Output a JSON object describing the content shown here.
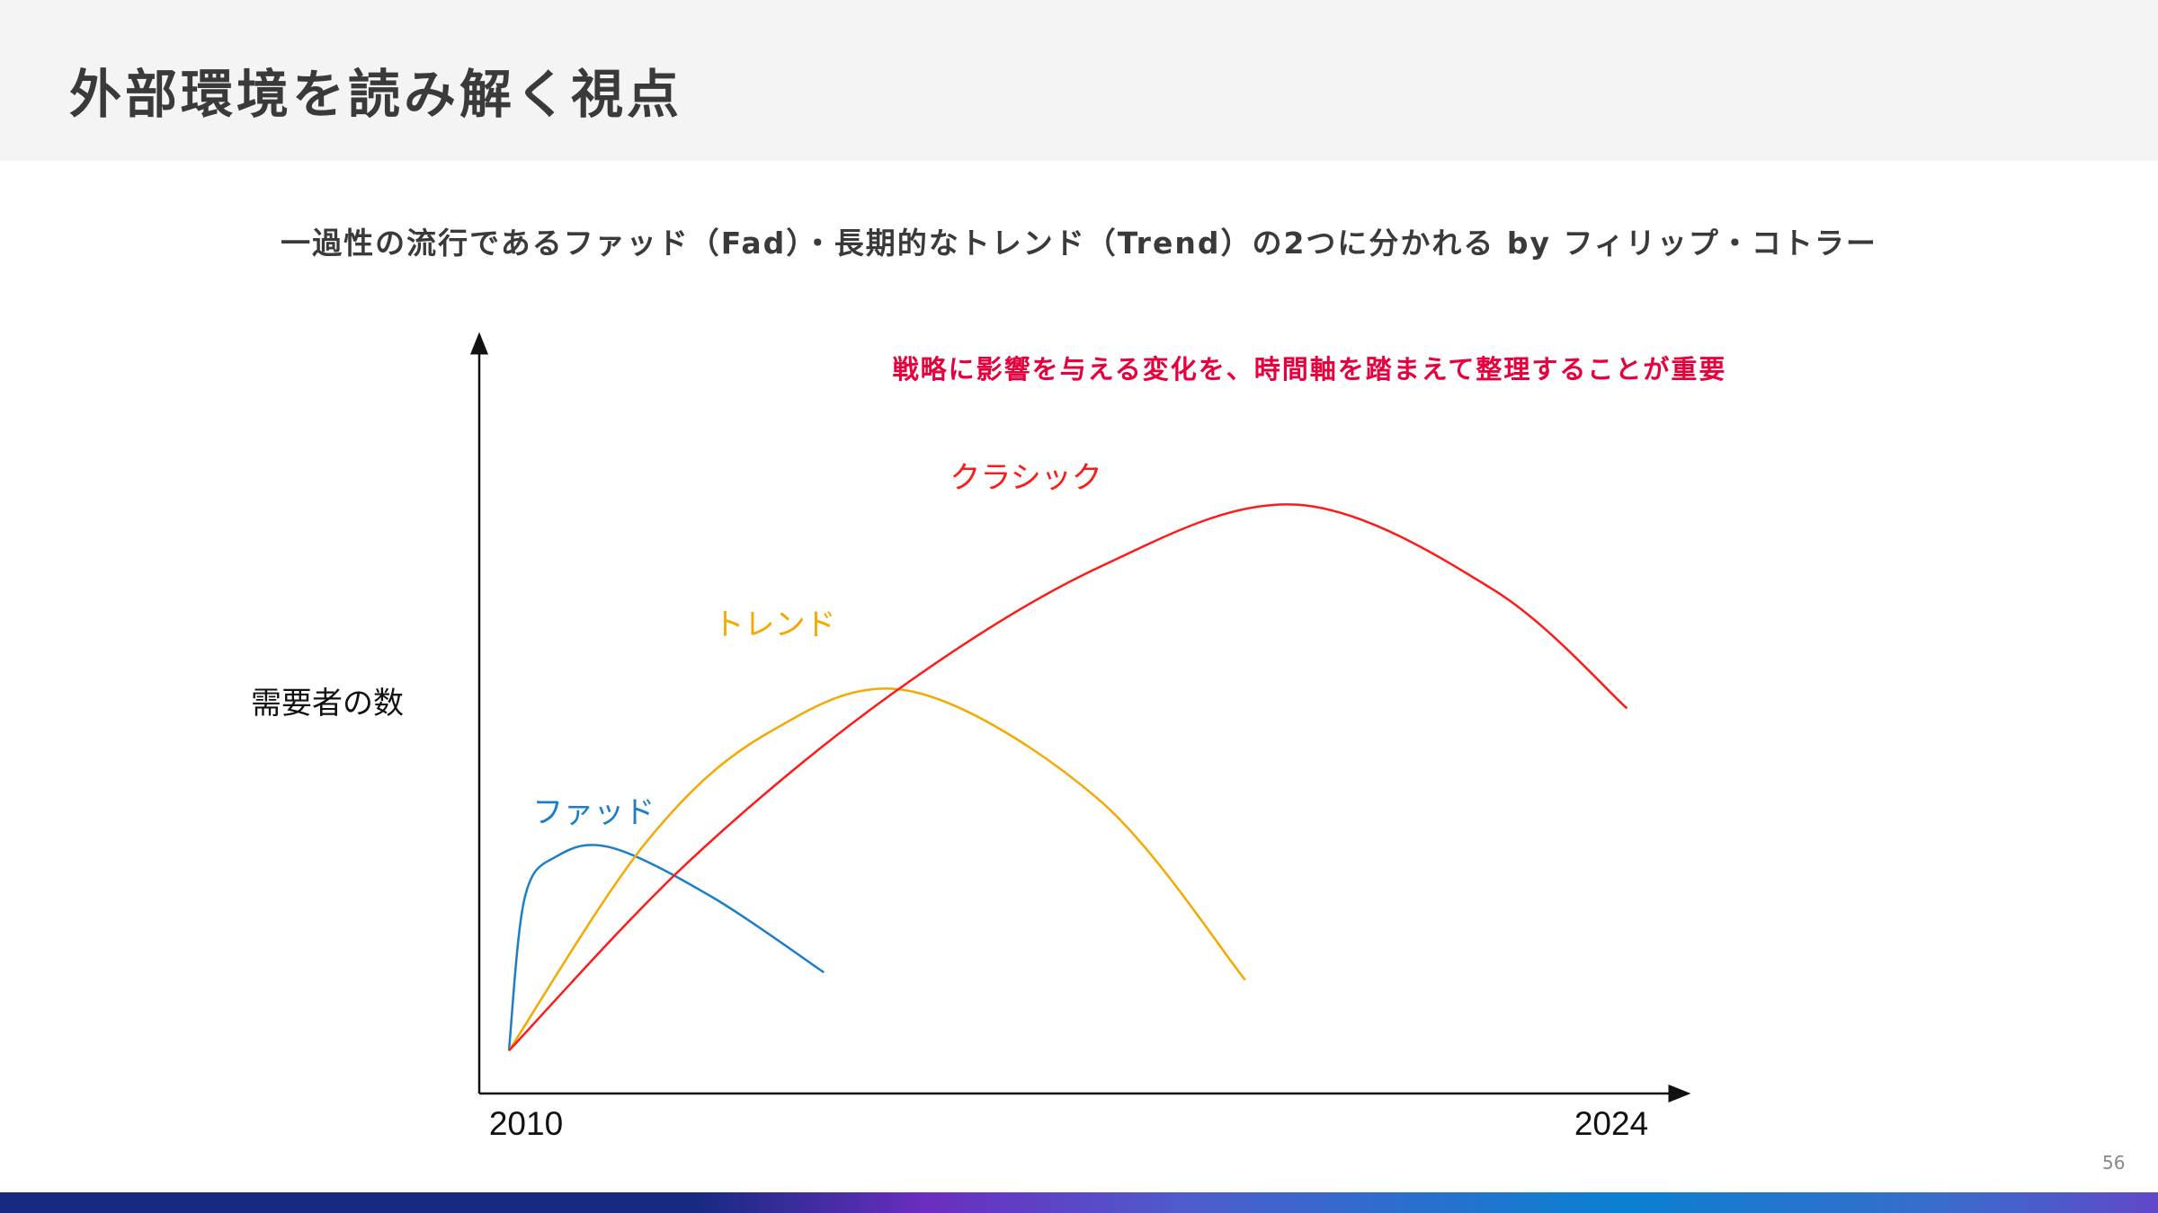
{
  "header": {
    "title": "外部環境を読み解く視点"
  },
  "subtitle": "一過性の流行であるファッド（Fad）・長期的なトレンド（Trend）の2つに分かれる by フィリップ・コトラー",
  "page_number": "56",
  "chart_data": {
    "type": "line",
    "title": "",
    "annotation": "戦略に影響を与える変化を、時間軸を踏まえて整理することが重要",
    "xlabel": "",
    "ylabel": "需要者の数",
    "x_tick_labels": [
      "2010",
      "2024"
    ],
    "x_ticks": [
      2010,
      2024
    ],
    "xlim": [
      2010,
      2025.2
    ],
    "ylim": [
      0,
      100
    ],
    "grid": false,
    "series": [
      {
        "name": "ファッド",
        "color": "#1a7fc8",
        "points": [
          [
            2010,
            5.7
          ],
          [
            2010.2,
            26
          ],
          [
            2010.6,
            31.5
          ],
          [
            2011.3,
            32.7
          ],
          [
            2012.6,
            26
          ],
          [
            2014.0,
            16.1
          ]
        ]
      },
      {
        "name": "トレンド",
        "color": "#f5a800",
        "points": [
          [
            2010,
            5.7
          ],
          [
            2011.75,
            33.5
          ],
          [
            2013.3,
            48
          ],
          [
            2015.1,
            53.5
          ],
          [
            2017.5,
            39
          ],
          [
            2019.35,
            15.1
          ]
        ]
      },
      {
        "name": "クラシック",
        "color": "#ff1a1a",
        "points": [
          [
            2010,
            5.7
          ],
          [
            2012.3,
            31
          ],
          [
            2014.9,
            53.4
          ],
          [
            2017.5,
            70
          ],
          [
            2020.0,
            78.3
          ],
          [
            2022.5,
            67
          ],
          [
            2024.2,
            51.2
          ]
        ]
      }
    ],
    "series_label_anchor": [
      [
        2010.3,
        36
      ],
      [
        2012.6,
        61
      ],
      [
        2015.6,
        80.5
      ]
    ]
  }
}
